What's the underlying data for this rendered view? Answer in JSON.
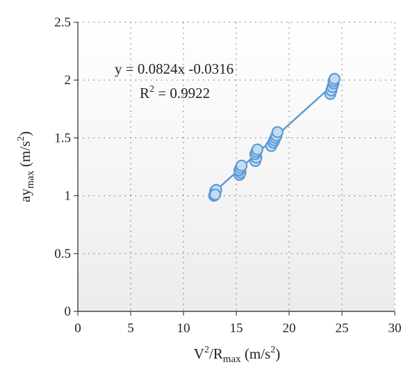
{
  "chart_data": {
    "type": "scatter",
    "title": "",
    "xlabel": {
      "main": "V",
      "sup1": "2",
      "mid": "/R",
      "sub": "max",
      "unit": " (m/s",
      "sup2": "2",
      "end": ")"
    },
    "ylabel": {
      "main": "ay",
      "sub": "max",
      "unit": " (m/s",
      "sup": "2",
      "end": ")"
    },
    "xlim": [
      0,
      30
    ],
    "ylim": [
      0,
      2.5
    ],
    "x_ticks": [
      "0",
      "5",
      "10",
      "15",
      "20",
      "25",
      "30"
    ],
    "y_ticks": [
      "0",
      "0.5",
      "1",
      "1.5",
      "2",
      "2.5"
    ],
    "grid": true,
    "marker_color": "#5b9bd5",
    "series": [
      {
        "x": [
          12.9,
          13.0,
          13.0,
          13.1,
          13.0,
          15.3,
          15.4,
          15.3,
          15.4,
          15.5,
          16.8,
          16.9,
          16.8,
          16.9,
          17.0,
          18.3,
          18.5,
          18.6,
          18.7,
          18.8,
          18.9,
          23.9,
          24.0,
          24.1,
          24.2,
          24.2,
          24.3
        ],
        "y": [
          1.0,
          1.02,
          1.04,
          1.05,
          1.01,
          1.18,
          1.2,
          1.22,
          1.24,
          1.26,
          1.3,
          1.33,
          1.36,
          1.38,
          1.4,
          1.43,
          1.46,
          1.48,
          1.5,
          1.52,
          1.55,
          1.88,
          1.91,
          1.94,
          1.97,
          1.99,
          2.01
        ]
      }
    ],
    "trendline": {
      "slope": 0.0824,
      "intercept": -0.0316,
      "x_range": [
        12.9,
        24.3
      ],
      "equation": "y = 0.0824x -0.0316",
      "r2_label": "R",
      "r2_sup": "2",
      "r2_value": " = 0.9922"
    }
  }
}
